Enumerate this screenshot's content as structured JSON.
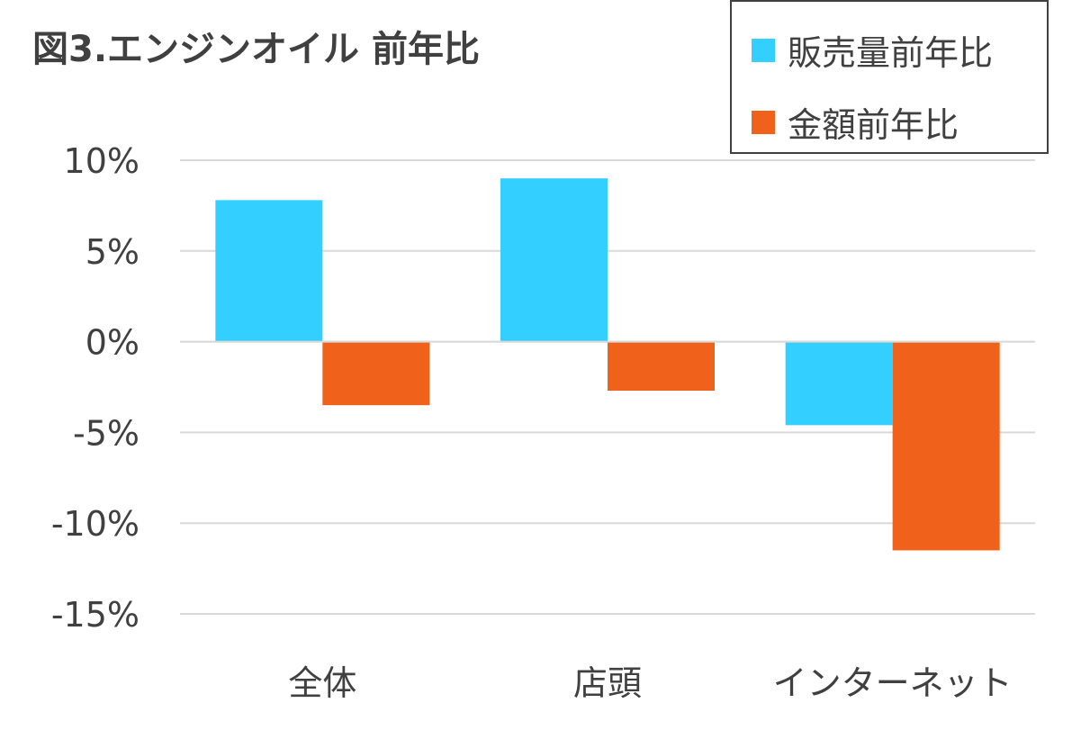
{
  "chart_data": {
    "type": "bar",
    "title": "図3.エンジンオイル 前年比",
    "categories": [
      "全体",
      "店頭",
      "インターネット"
    ],
    "series": [
      {
        "name": "販売量前年比",
        "color": "#33CFFF",
        "values": [
          7.8,
          9.0,
          -4.6
        ]
      },
      {
        "name": "金額前年比",
        "color": "#F0621B",
        "values": [
          -3.5,
          -2.7,
          -11.5
        ]
      }
    ],
    "yticks": [
      "10%",
      "5%",
      "0%",
      "-5%",
      "-10%",
      "-15%"
    ],
    "ytick_values": [
      10,
      5,
      0,
      -5,
      -10,
      -15
    ],
    "ylim": [
      -15,
      10
    ],
    "xlabel": "",
    "ylabel": "",
    "grid": true,
    "legend_position": "top-right"
  }
}
